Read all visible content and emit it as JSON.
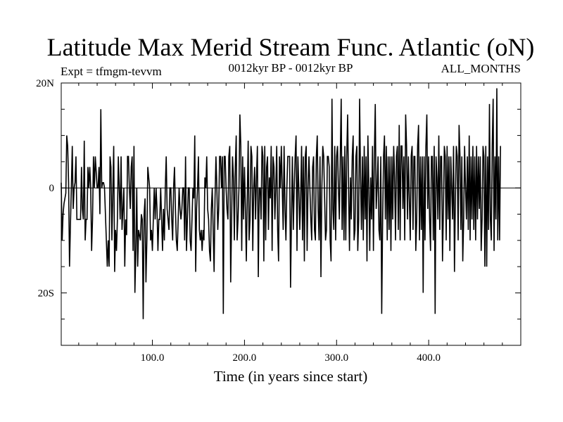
{
  "chart_data": {
    "type": "line",
    "title": "Latitude Max Merid Stream Func. Atlantic (oN)",
    "subtitle_left": "Expt = tfmgm-tevvm",
    "subtitle_center": "0012kyr BP - 0012kyr BP",
    "subtitle_right": "ALL_MONTHS",
    "xlabel": "Time (in years since start)",
    "ylabel": "",
    "xlim": [
      1,
      500
    ],
    "ylim": [
      -30,
      20
    ],
    "x_ticks": [
      {
        "value": 100,
        "label": "100.0"
      },
      {
        "value": 200,
        "label": "200.0"
      },
      {
        "value": 300,
        "label": "300.0"
      },
      {
        "value": 400,
        "label": "400.0"
      }
    ],
    "y_ticks": [
      {
        "value": 20,
        "label": "20N"
      },
      {
        "value": 0,
        "label": "0"
      },
      {
        "value": -20,
        "label": "20S"
      }
    ],
    "y_minor_ticks": [
      15,
      10,
      5,
      -5,
      -10,
      -15,
      -25
    ],
    "zero_line": true,
    "series": [
      {
        "name": "Latitude Max Merid Stream Func. Atlantic",
        "color": "#000000",
        "x_start": 1,
        "x_step": 1,
        "values": [
          1,
          -10,
          -5,
          -3,
          -2,
          -1,
          10,
          8,
          1,
          -15,
          -7,
          0,
          8,
          -4,
          0,
          1,
          6,
          -6,
          -6,
          -6,
          -6,
          -6,
          4,
          -4,
          -6,
          9,
          -10,
          -6,
          -6,
          4,
          0,
          4,
          0,
          -12,
          -6,
          6,
          0,
          6,
          3,
          0,
          0,
          4,
          -5,
          15,
          0,
          1,
          1,
          0,
          -5,
          -10,
          -15,
          -10,
          -15,
          6,
          4,
          -10,
          -1,
          8,
          -16,
          -8,
          -12,
          -6,
          6,
          0,
          -6,
          6,
          -8,
          -4,
          0,
          -15,
          -6,
          -9,
          6,
          6,
          0,
          -4,
          4,
          6,
          -12,
          8,
          -20,
          -12,
          0,
          -15,
          -8,
          -9,
          -10,
          -5,
          -6,
          -25,
          -5,
          -2,
          -18,
          -10,
          4,
          2,
          0,
          -10,
          -8,
          -12,
          -6,
          0,
          -6,
          0,
          -4,
          -12,
          -6,
          -6,
          0,
          -6,
          -12,
          -4,
          -10,
          0,
          6,
          -4,
          -6,
          -8,
          0,
          0,
          -6,
          -10,
          0,
          4,
          -4,
          -10,
          -12,
          -6,
          0,
          -4,
          -6,
          -4,
          0,
          0,
          -10,
          6,
          -12,
          -6,
          0,
          0,
          -10,
          -12,
          -6,
          0,
          -2,
          10,
          -16,
          -4,
          0,
          6,
          -8,
          -10,
          -8,
          -12,
          -8,
          -10,
          2,
          0,
          6,
          -4,
          -6,
          -12,
          -14,
          -4,
          0,
          -8,
          -16,
          -2,
          6,
          0,
          -8,
          -4,
          6,
          6,
          0,
          6,
          -24,
          6,
          6,
          0,
          -4,
          -6,
          6,
          8,
          -18,
          -6,
          6,
          2,
          -10,
          4,
          10,
          -10,
          -6,
          0,
          14,
          8,
          -12,
          6,
          -6,
          4,
          -4,
          -14,
          -2,
          9,
          -10,
          -6,
          8,
          6,
          -12,
          0,
          4,
          -6,
          2,
          8,
          -17,
          0,
          0,
          -6,
          8,
          6,
          -14,
          8,
          -10,
          4,
          6,
          -8,
          2,
          -2,
          8,
          -12,
          6,
          4,
          -6,
          0,
          8,
          -8,
          -14,
          6,
          0,
          8,
          0,
          -8,
          8,
          -4,
          -10,
          0,
          6,
          6,
          6,
          -19,
          -6,
          6,
          -8,
          0,
          6,
          10,
          -12,
          6,
          0,
          -8,
          -2,
          8,
          -10,
          6,
          -14,
          6,
          8,
          -12,
          0,
          6,
          0,
          -6,
          -10,
          4,
          6,
          -8,
          -10,
          6,
          10,
          -4,
          -10,
          6,
          -17,
          0,
          8,
          6,
          -2,
          -10,
          -8,
          6,
          6,
          4,
          -10,
          -14,
          17,
          -4,
          -8,
          8,
          -10,
          6,
          8,
          0,
          -6,
          6,
          17,
          -8,
          6,
          -10,
          8,
          -10,
          6,
          14,
          0,
          -12,
          2,
          -6,
          6,
          10,
          -10,
          -8,
          6,
          8,
          -12,
          -6,
          17,
          2,
          -8,
          6,
          -10,
          8,
          -6,
          6,
          -14,
          10,
          0,
          -12,
          2,
          -6,
          8,
          -12,
          6,
          16,
          -4,
          0,
          6,
          -8,
          -10,
          6,
          -24,
          -6,
          6,
          10,
          -6,
          8,
          -10,
          6,
          -8,
          6,
          -12,
          6,
          -6,
          8,
          2,
          -10,
          6,
          8,
          -8,
          12,
          -10,
          8,
          8,
          -4,
          6,
          -10,
          14,
          8,
          -6,
          6,
          -2,
          -10,
          6,
          8,
          -8,
          6,
          6,
          -12,
          -6,
          8,
          12,
          -10,
          6,
          -8,
          6,
          -20,
          6,
          -10,
          8,
          14,
          -4,
          6,
          -6,
          -12,
          6,
          6,
          -10,
          8,
          -24,
          6,
          2,
          -6,
          10,
          -8,
          6,
          6,
          -14,
          -4,
          8,
          6,
          -10,
          8,
          -6,
          6,
          -12,
          6,
          0,
          -6,
          8,
          -16,
          -2,
          8,
          6,
          -10,
          12,
          6,
          -8,
          6,
          -14,
          -6,
          8,
          0,
          -6,
          6,
          -8,
          10,
          -10,
          6,
          -6,
          8,
          -8,
          6,
          -10,
          8,
          -6,
          6,
          -4,
          6,
          -12,
          -6,
          8,
          6,
          -15,
          8,
          -15,
          6,
          -8,
          16,
          -6,
          -10,
          8,
          17,
          -12,
          6,
          -6,
          19,
          -10,
          6,
          -10,
          8
        ]
      }
    ]
  }
}
